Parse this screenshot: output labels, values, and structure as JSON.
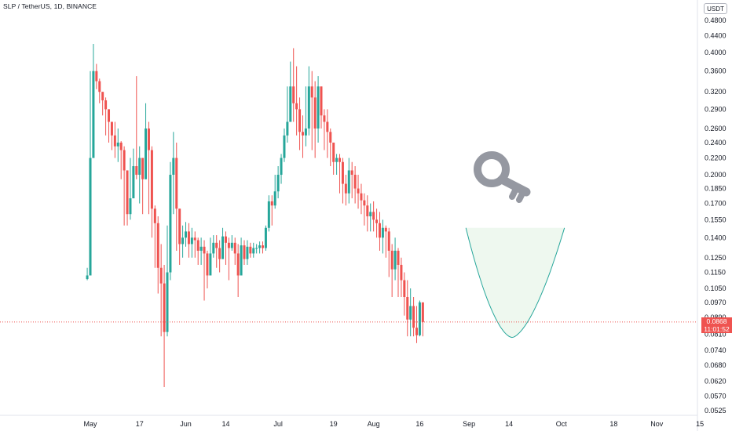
{
  "chart_data": {
    "type": "candlestick",
    "symbol": "SLP / TetherUS, 1D, BINANCE",
    "currency": "USDT",
    "scale": "log",
    "grid": false,
    "y_ticks": [
      "0.4800",
      "0.4400",
      "0.4000",
      "0.3600",
      "0.3200",
      "0.2900",
      "0.2600",
      "0.2400",
      "0.2200",
      "0.2000",
      "0.1850",
      "0.1700",
      "0.1550",
      "0.1400",
      "0.1250",
      "0.1150",
      "0.1050",
      "0.0970",
      "0.0890",
      "0.0810",
      "0.0740",
      "0.0680",
      "0.0620",
      "0.0570",
      "0.0525"
    ],
    "y_tick_values": [
      0.48,
      0.44,
      0.4,
      0.36,
      0.32,
      0.29,
      0.26,
      0.24,
      0.22,
      0.2,
      0.185,
      0.17,
      0.155,
      0.14,
      0.125,
      0.115,
      0.105,
      0.097,
      0.089,
      0.081,
      0.074,
      0.068,
      0.062,
      0.057,
      0.0525
    ],
    "x_ticks": [
      {
        "label": "May",
        "date": "2021-05-01"
      },
      {
        "label": "17",
        "date": "2021-05-17"
      },
      {
        "label": "Jun",
        "date": "2021-06-01"
      },
      {
        "label": "14",
        "date": "2021-06-14"
      },
      {
        "label": "Jul",
        "date": "2021-07-01"
      },
      {
        "label": "19",
        "date": "2021-07-19"
      },
      {
        "label": "Aug",
        "date": "2021-08-01"
      },
      {
        "label": "16",
        "date": "2021-08-16"
      },
      {
        "label": "Sep",
        "date": "2021-09-01"
      },
      {
        "label": "14",
        "date": "2021-09-14"
      },
      {
        "label": "Oct",
        "date": "2021-10-01"
      },
      {
        "label": "18",
        "date": "2021-10-18"
      },
      {
        "label": "Nov",
        "date": "2021-11-01"
      },
      {
        "label": "15",
        "date": "2021-11-15"
      }
    ],
    "first_date": "2021-04-30",
    "last_price": {
      "value": 0.0868,
      "label": "0.0868",
      "countdown": "11:01:52"
    },
    "up_color": "#26a69a",
    "down_color": "#ef5350",
    "closes": [
      0.113,
      0.22,
      0.36,
      0.34,
      0.32,
      0.305,
      0.29,
      0.27,
      0.25,
      0.235,
      0.24,
      0.23,
      0.205,
      0.16,
      0.175,
      0.21,
      0.2,
      0.22,
      0.195,
      0.26,
      0.23,
      0.165,
      0.152,
      0.118,
      0.108,
      0.082,
      0.115,
      0.2,
      0.22,
      0.165,
      0.135,
      0.14,
      0.145,
      0.135,
      0.14,
      0.138,
      0.13,
      0.133,
      0.128,
      0.113,
      0.128,
      0.136,
      0.132,
      0.124,
      0.141,
      0.136,
      0.132,
      0.136,
      0.128,
      0.113,
      0.134,
      0.124,
      0.133,
      0.128,
      0.132,
      0.132,
      0.134,
      0.132,
      0.148,
      0.172,
      0.168,
      0.182,
      0.2,
      0.22,
      0.25,
      0.27,
      0.33,
      0.3,
      0.29,
      0.255,
      0.25,
      0.26,
      0.33,
      0.31,
      0.26,
      0.33,
      0.28,
      0.27,
      0.255,
      0.24,
      0.215,
      0.22,
      0.215,
      0.19,
      0.18,
      0.205,
      0.2,
      0.185,
      0.18,
      0.173,
      0.168,
      0.158,
      0.162,
      0.155,
      0.152,
      0.14,
      0.148,
      0.145,
      0.13,
      0.117,
      0.13,
      0.12,
      0.11,
      0.1,
      0.088,
      0.095,
      0.084,
      0.0805,
      0.097,
      0.0868
    ],
    "highs": [
      0.118,
      0.36,
      0.42,
      0.375,
      0.345,
      0.32,
      0.31,
      0.285,
      0.262,
      0.27,
      0.26,
      0.242,
      0.235,
      0.2,
      0.22,
      0.232,
      0.35,
      0.235,
      0.215,
      0.3,
      0.27,
      0.235,
      0.168,
      0.158,
      0.135,
      0.12,
      0.15,
      0.215,
      0.255,
      0.24,
      0.155,
      0.15,
      0.153,
      0.152,
      0.148,
      0.145,
      0.14,
      0.14,
      0.138,
      0.13,
      0.14,
      0.142,
      0.142,
      0.138,
      0.148,
      0.145,
      0.14,
      0.142,
      0.14,
      0.135,
      0.14,
      0.138,
      0.138,
      0.136,
      0.136,
      0.135,
      0.137,
      0.137,
      0.15,
      0.178,
      0.178,
      0.2,
      0.21,
      0.225,
      0.26,
      0.33,
      0.38,
      0.41,
      0.37,
      0.31,
      0.28,
      0.33,
      0.37,
      0.36,
      0.34,
      0.35,
      0.32,
      0.29,
      0.29,
      0.26,
      0.24,
      0.225,
      0.225,
      0.22,
      0.2,
      0.22,
      0.215,
      0.21,
      0.2,
      0.19,
      0.18,
      0.178,
      0.17,
      0.172,
      0.165,
      0.162,
      0.155,
      0.15,
      0.148,
      0.135,
      0.14,
      0.132,
      0.125,
      0.115,
      0.11,
      0.105,
      0.1,
      0.095,
      0.098,
      0.097
    ],
    "lows": [
      0.11,
      0.21,
      0.22,
      0.325,
      0.3,
      0.28,
      0.25,
      0.24,
      0.23,
      0.22,
      0.215,
      0.195,
      0.15,
      0.15,
      0.155,
      0.185,
      0.195,
      0.17,
      0.16,
      0.2,
      0.16,
      0.14,
      0.118,
      0.102,
      0.08,
      0.06,
      0.08,
      0.11,
      0.16,
      0.13,
      0.12,
      0.125,
      0.133,
      0.125,
      0.125,
      0.125,
      0.12,
      0.12,
      0.098,
      0.105,
      0.12,
      0.125,
      0.118,
      0.115,
      0.125,
      0.12,
      0.11,
      0.13,
      0.12,
      0.1,
      0.125,
      0.12,
      0.12,
      0.125,
      0.125,
      0.128,
      0.128,
      0.128,
      0.13,
      0.145,
      0.15,
      0.165,
      0.175,
      0.19,
      0.215,
      0.24,
      0.27,
      0.27,
      0.25,
      0.23,
      0.22,
      0.235,
      0.25,
      0.23,
      0.22,
      0.24,
      0.26,
      0.23,
      0.22,
      0.21,
      0.2,
      0.2,
      0.18,
      0.17,
      0.168,
      0.17,
      0.175,
      0.17,
      0.165,
      0.16,
      0.15,
      0.145,
      0.145,
      0.145,
      0.14,
      0.13,
      0.128,
      0.125,
      0.112,
      0.1,
      0.11,
      0.1,
      0.1,
      0.09,
      0.08,
      0.08,
      0.08,
      0.077,
      0.08,
      0.08
    ]
  },
  "drawing": {
    "type": "cup",
    "fill": "#e8f5e9",
    "stroke": "#26a69a",
    "level": 0.148
  },
  "icon": "key-icon",
  "icon_color": "#9598a1"
}
